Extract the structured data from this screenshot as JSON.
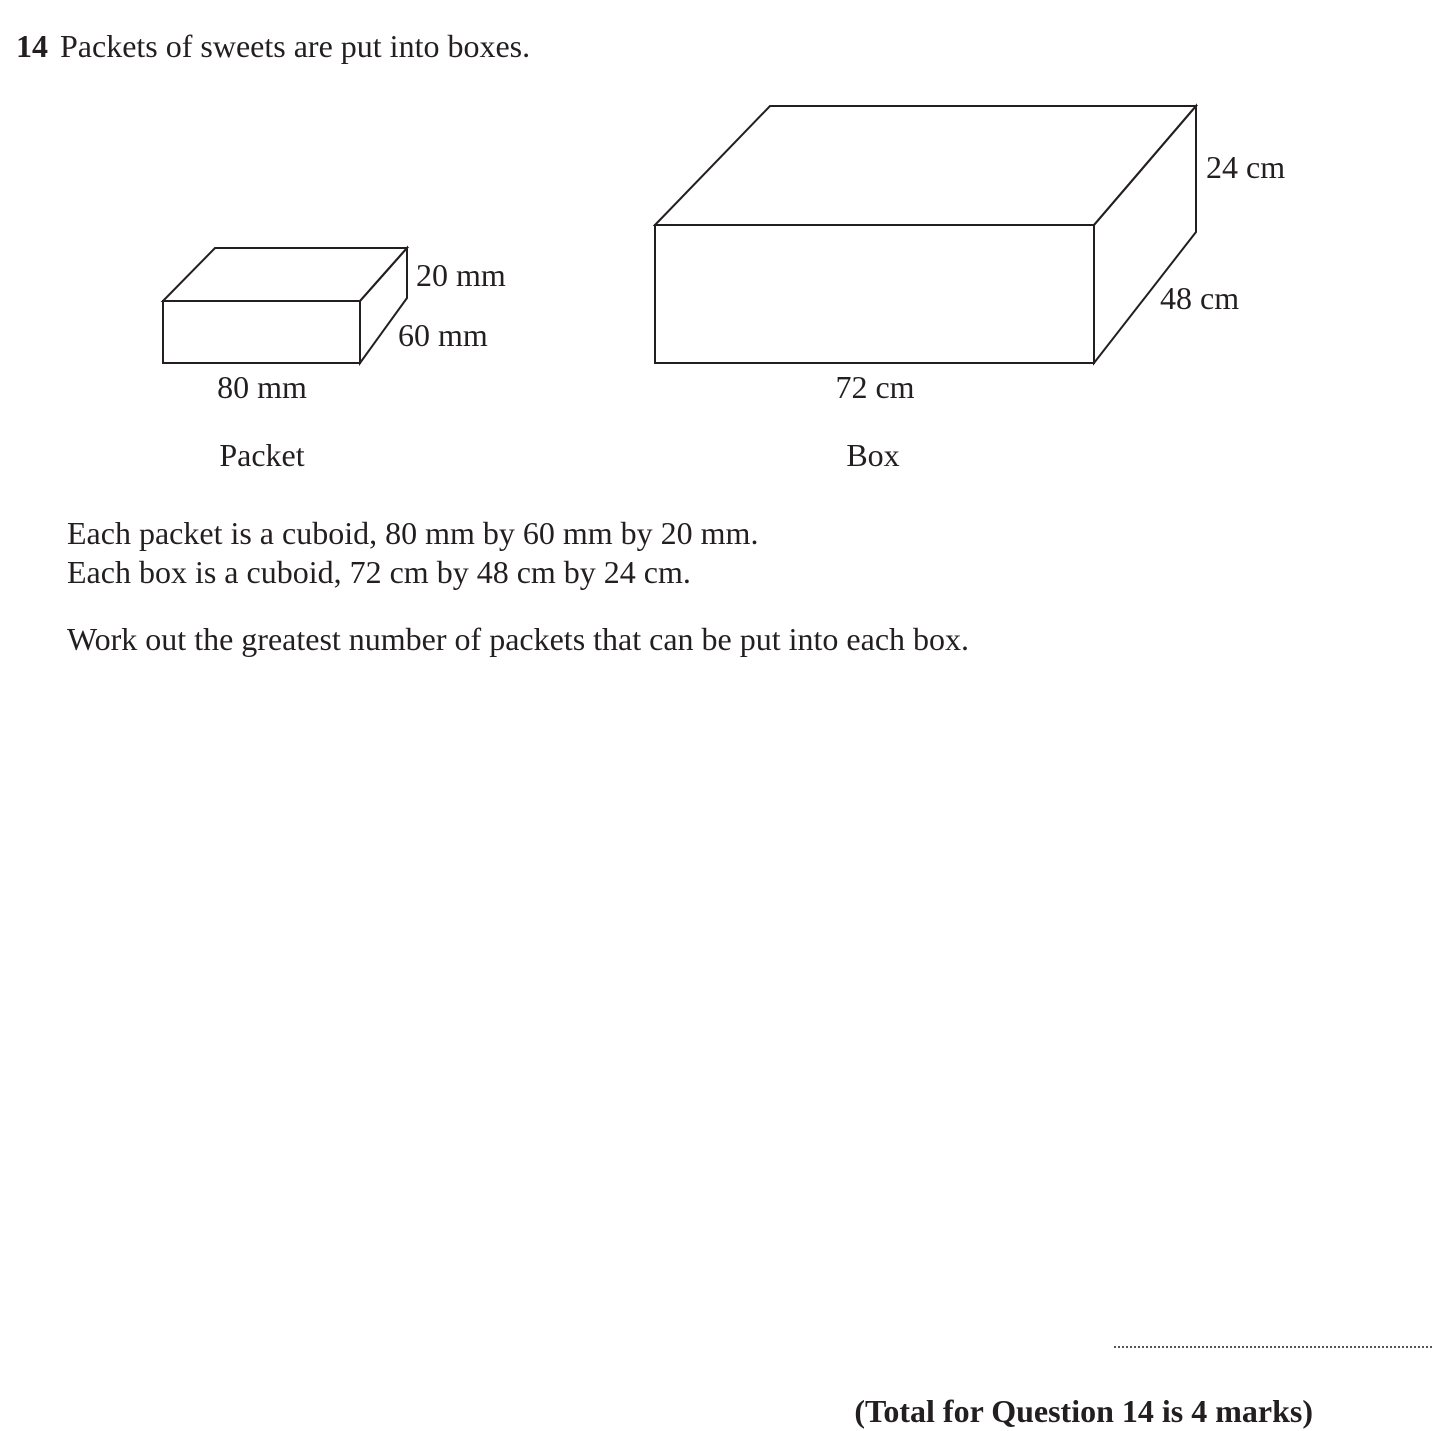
{
  "question": {
    "number": "14",
    "intro": "Packets of sweets are put into boxes."
  },
  "figures": {
    "packet": {
      "height_label": "20 mm",
      "depth_label": "60 mm",
      "width_label": "80 mm",
      "caption": "Packet"
    },
    "box": {
      "height_label": "24 cm",
      "depth_label": "48 cm",
      "width_label": "72 cm",
      "caption": "Box"
    }
  },
  "body": {
    "line1": "Each packet is a cuboid, 80 mm by 60 mm by 20 mm.",
    "line2": "Each box is a cuboid, 72 cm by 48 cm by 24 cm.",
    "instruction": "Work out the greatest number of packets that can be put into each box."
  },
  "footer": {
    "total": "(Total for Question 14 is 4 marks)"
  }
}
